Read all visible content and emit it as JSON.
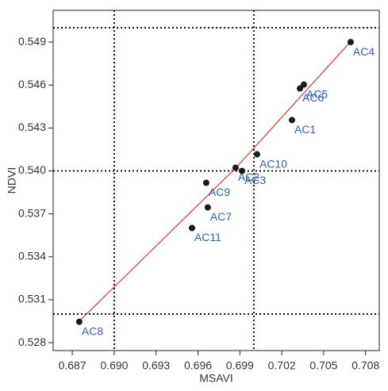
{
  "chart_data": {
    "type": "scatter",
    "x_label": "MSAVI",
    "y_label": "NDVI",
    "xlim": [
      0.68563,
      0.70898
    ],
    "ylim": [
      0.52745,
      0.55122
    ],
    "xticks": [
      0.687,
      {
        "value": 0.69,
        "label": "0.690"
      },
      0.693,
      0.696,
      0.699,
      0.702,
      0.705,
      0.708
    ],
    "yticks": [
      0.528,
      0.531,
      0.534,
      0.537,
      {
        "value": 0.54,
        "label": "0.540"
      },
      0.543,
      0.546,
      0.549
    ],
    "hlines": [
      0.53,
      0.54,
      0.55
    ],
    "vlines": [
      0.69,
      0.7
    ],
    "point_color": "#1a1a1a",
    "label_color": "#2e5fae",
    "points": {
      "labels": [
        "AC4",
        "AC5",
        "AC6",
        "AC1",
        "AC10",
        "AC2",
        "AC3",
        "AC9",
        "AC7",
        "AC11",
        "AC8"
      ],
      "x": [
        0.70693,
        0.70358,
        0.7033,
        0.70273,
        0.70023,
        0.69869,
        0.69915,
        0.69659,
        0.6967,
        0.69557,
        0.6875
      ],
      "y": [
        0.549,
        0.54603,
        0.54576,
        0.54355,
        0.54116,
        0.54022,
        0.54,
        0.53917,
        0.53745,
        0.53601,
        0.52946
      ]
    },
    "fit": {
      "color": "#e03030",
      "x": [
        0.6875,
        0.6987,
        0.7069
      ],
      "y": [
        0.5295,
        0.5402,
        0.549
      ]
    }
  }
}
